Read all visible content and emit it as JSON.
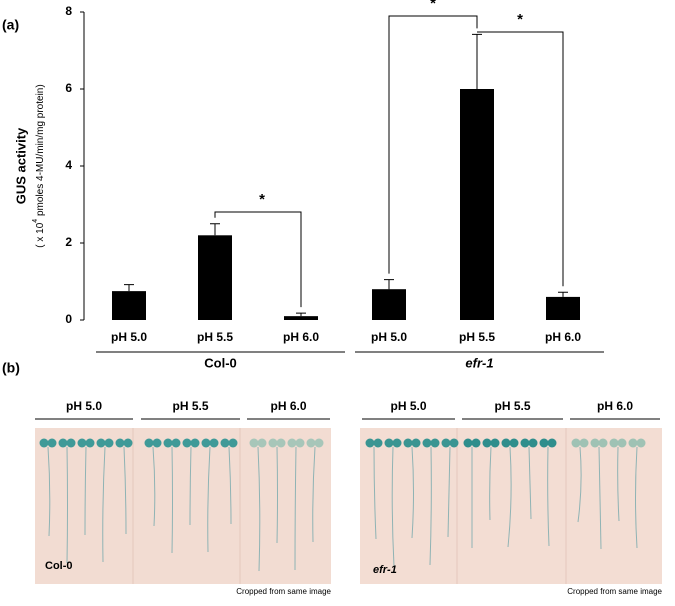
{
  "chart_data": {
    "type": "bar",
    "panel_label": "(a)",
    "y_label": "GUS activity",
    "y_label_line2": {
      "prefix": "( x 10",
      "superscript": "4",
      "suffix": " pmoles 4-MU/min/mg protein)"
    },
    "categories": [
      "pH 5.0",
      "pH 5.5",
      "pH 6.0",
      "pH 5.0",
      "pH 5.5",
      "pH 6.0"
    ],
    "groups": [
      "Col-0",
      "efr-1"
    ],
    "values": [
      0.75,
      2.2,
      0.1,
      0.8,
      6.0,
      0.6
    ],
    "errors": [
      0.17,
      0.3,
      0.08,
      0.25,
      1.42,
      0.12
    ],
    "color": "#000000",
    "ylim": [
      0,
      8
    ],
    "yticks": [
      0,
      2,
      4,
      6,
      8
    ],
    "significance": [
      "*",
      "*",
      "*"
    ]
  },
  "photo_panel": {
    "panel_label": "(b)",
    "left": {
      "conditions": [
        "pH 5.0",
        "pH 5.5",
        "pH 6.0"
      ],
      "genotype": "Col-0",
      "note": "Cropped from same image"
    },
    "right": {
      "conditions": [
        "pH 5.0",
        "pH 5.5",
        "pH 6.0"
      ],
      "genotype": "efr-1",
      "note": "Cropped from same image"
    }
  }
}
